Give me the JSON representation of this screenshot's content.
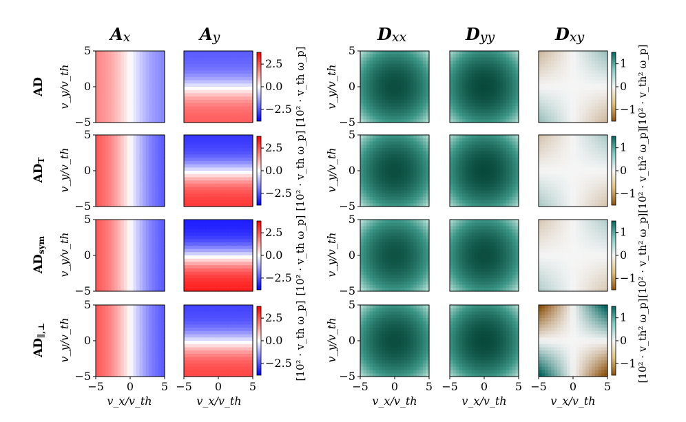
{
  "chart_data": {
    "type": "heatmap",
    "columns": [
      {
        "id": "Ax",
        "label_main": "A",
        "label_sub": "x",
        "cmap": "bwr",
        "colorbar": null
      },
      {
        "id": "Ay",
        "label_main": "A",
        "label_sub": "y",
        "cmap": "bwr",
        "colorbar": "advection"
      },
      {
        "id": "Dxx",
        "label_main": "D",
        "label_sub": "xx",
        "cmap": "teal",
        "colorbar": null
      },
      {
        "id": "Dyy",
        "label_main": "D",
        "label_sub": "yy",
        "cmap": "teal",
        "colorbar": null
      },
      {
        "id": "Dxy",
        "label_main": "D",
        "label_sub": "xy",
        "cmap": "brbg",
        "colorbar": "diffusion"
      }
    ],
    "rows": [
      {
        "label_main": "AD",
        "label_sub": ""
      },
      {
        "label_main": "AD",
        "label_sub": "T"
      },
      {
        "label_main": "AD",
        "label_sub": "sym"
      },
      {
        "label_main": "AD",
        "label_sub": "∥,⊥"
      }
    ],
    "x_range": [
      -5,
      5
    ],
    "y_range": [
      -5,
      5
    ],
    "x_ticks": [
      "−5",
      "0",
      "5"
    ],
    "y_ticks": [
      "5",
      "0",
      "−5"
    ],
    "xlabel": "v_x/v_th",
    "ylabel": "v_y/v_th",
    "colorbars": {
      "advection": {
        "ticks": [
          "2.5",
          "0.0",
          "−2.5"
        ],
        "range": [
          -3.8,
          3.8
        ],
        "label": "[10² · v_th ω_p]"
      },
      "diffusion": {
        "ticks": [
          "1",
          "0",
          "−1"
        ],
        "range": [
          -1.5,
          1.5
        ],
        "label": "[10² · v_th² ω_p]"
      }
    }
  }
}
